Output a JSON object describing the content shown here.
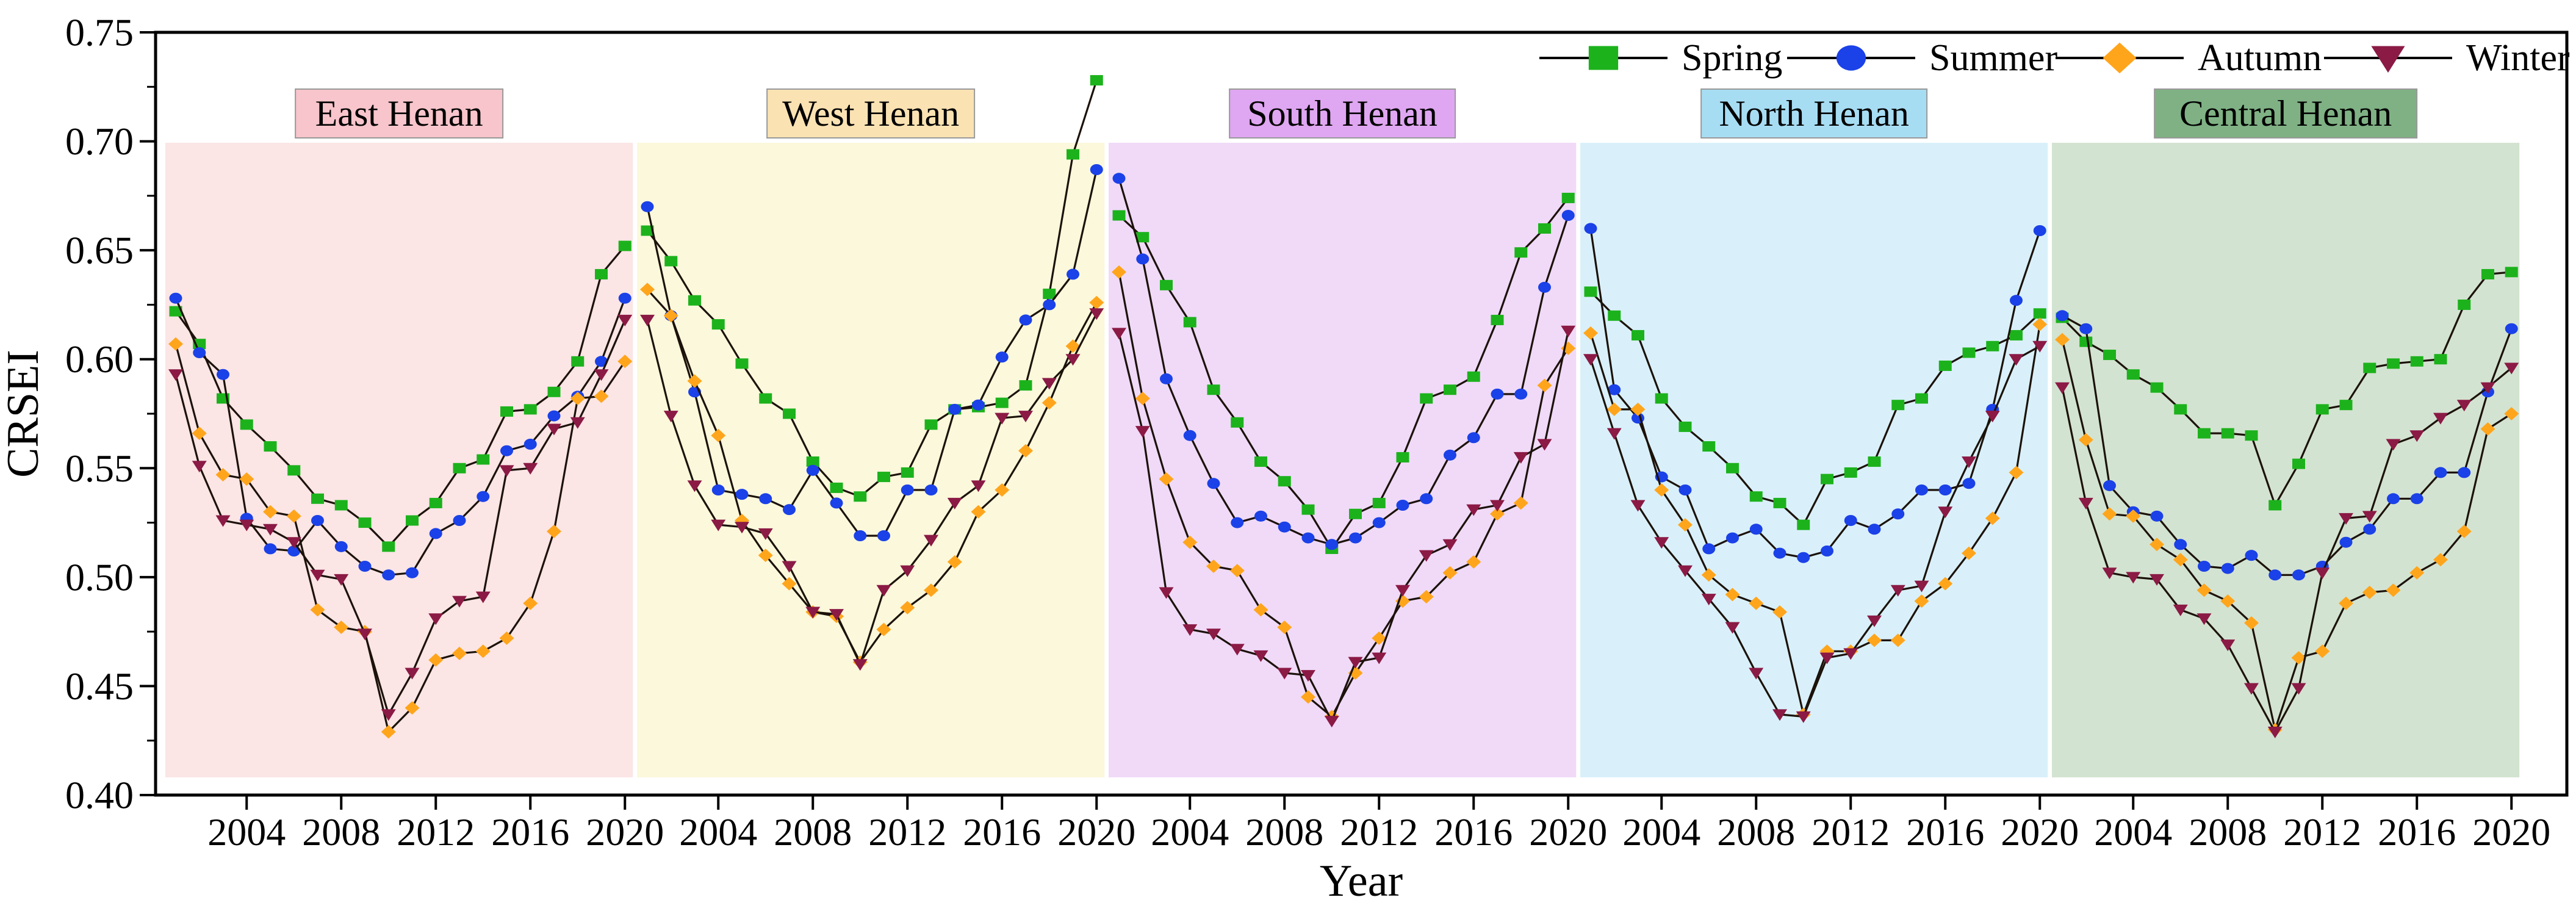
{
  "chart_data": {
    "type": "line",
    "title": "",
    "ylabel": "CRSEI",
    "xlabel": "Year",
    "ylim": [
      0.4,
      0.75
    ],
    "yticks": [
      0.4,
      0.45,
      0.5,
      0.55,
      0.6,
      0.65,
      0.7,
      0.75
    ],
    "ytick_labels": [
      "0.40",
      "0.45",
      "0.50",
      "0.55",
      "0.60",
      "0.65",
      "0.70",
      "0.75"
    ],
    "xticks": [
      2004,
      2008,
      2012,
      2016,
      2020
    ],
    "years": [
      2001,
      2002,
      2003,
      2004,
      2005,
      2006,
      2007,
      2008,
      2009,
      2010,
      2011,
      2012,
      2013,
      2014,
      2015,
      2016,
      2017,
      2018,
      2019,
      2020
    ],
    "grid": "off",
    "legend_position": "top-right",
    "legend": [
      {
        "label": "Spring",
        "marker": "square",
        "color": "#1CB21C"
      },
      {
        "label": "Summer",
        "marker": "circle",
        "color": "#1B41E8"
      },
      {
        "label": "Autumn",
        "marker": "diamond",
        "color": "#FFA51C"
      },
      {
        "label": "Winter",
        "marker": "triangle-down",
        "color": "#8B1A45"
      }
    ],
    "line_color": "#1C120A",
    "panels": [
      {
        "label": "East Henan",
        "panel_bg": "#FBE5E5",
        "label_bg": "#F7C5CB",
        "series": {
          "Spring": [
            0.622,
            0.607,
            0.582,
            0.57,
            0.56,
            0.549,
            0.536,
            0.533,
            0.525,
            0.514,
            0.526,
            0.534,
            0.55,
            0.554,
            0.576,
            0.577,
            0.585,
            0.599,
            0.639,
            0.652
          ],
          "Summer": [
            0.628,
            0.603,
            0.593,
            0.527,
            0.513,
            0.512,
            0.526,
            0.514,
            0.505,
            0.501,
            0.502,
            0.52,
            0.526,
            0.537,
            0.558,
            0.561,
            0.574,
            0.583,
            0.599,
            0.628
          ],
          "Autumn": [
            0.607,
            0.566,
            0.547,
            0.545,
            0.53,
            0.528,
            0.485,
            0.477,
            0.475,
            0.429,
            0.44,
            0.462,
            0.465,
            0.466,
            0.472,
            0.488,
            0.521,
            0.582,
            0.583,
            0.599
          ],
          "Winter": [
            0.593,
            0.551,
            0.526,
            0.524,
            0.522,
            0.516,
            0.501,
            0.499,
            0.474,
            0.437,
            0.456,
            0.481,
            0.489,
            0.491,
            0.549,
            0.55,
            0.568,
            0.571,
            0.593,
            0.618
          ]
        }
      },
      {
        "label": "West Henan",
        "panel_bg": "#FBF8DB",
        "label_bg": "#FAE2B3",
        "series": {
          "Spring": [
            0.659,
            0.645,
            0.627,
            0.616,
            0.598,
            0.582,
            0.575,
            0.553,
            0.541,
            0.537,
            0.546,
            0.548,
            0.57,
            0.577,
            0.578,
            0.58,
            0.588,
            0.63,
            0.694,
            0.728
          ],
          "Summer": [
            0.67,
            0.62,
            0.585,
            0.54,
            0.538,
            0.536,
            0.531,
            0.549,
            0.534,
            0.519,
            0.519,
            0.54,
            0.54,
            0.577,
            0.579,
            0.601,
            0.618,
            0.625,
            0.639,
            0.687
          ],
          "Autumn": [
            0.632,
            0.62,
            0.59,
            0.565,
            0.526,
            0.51,
            0.497,
            0.484,
            0.482,
            0.461,
            0.476,
            0.486,
            0.494,
            0.507,
            0.53,
            0.54,
            0.558,
            0.58,
            0.606,
            0.626
          ],
          "Winter": [
            0.618,
            0.574,
            0.542,
            0.524,
            0.523,
            0.52,
            0.505,
            0.484,
            0.483,
            0.46,
            0.494,
            0.503,
            0.517,
            0.534,
            0.542,
            0.573,
            0.574,
            0.589,
            0.6,
            0.621
          ]
        }
      },
      {
        "label": "South Henan",
        "panel_bg": "#F0DAF8",
        "label_bg": "#DFA6F1",
        "series": {
          "Spring": [
            0.666,
            0.656,
            0.634,
            0.617,
            0.586,
            0.571,
            0.553,
            0.544,
            0.531,
            0.513,
            0.529,
            0.534,
            0.555,
            0.582,
            0.586,
            0.592,
            0.618,
            0.649,
            0.66,
            0.674
          ],
          "Summer": [
            0.683,
            0.646,
            0.591,
            0.565,
            0.543,
            0.525,
            0.528,
            0.523,
            0.518,
            0.515,
            0.518,
            0.525,
            0.533,
            0.536,
            0.556,
            0.564,
            0.584,
            0.584,
            0.633,
            0.666
          ],
          "Autumn": [
            0.64,
            0.582,
            0.545,
            0.516,
            0.505,
            0.503,
            0.485,
            0.477,
            0.445,
            0.436,
            0.456,
            0.472,
            0.489,
            0.491,
            0.502,
            0.507,
            0.529,
            0.534,
            0.588,
            0.605
          ],
          "Winter": [
            0.612,
            0.567,
            0.493,
            0.476,
            0.474,
            0.467,
            0.464,
            0.456,
            0.455,
            0.434,
            0.461,
            0.463,
            0.494,
            0.51,
            0.515,
            0.531,
            0.533,
            0.555,
            0.561,
            0.613
          ]
        }
      },
      {
        "label": "North Henan",
        "panel_bg": "#D9F0FA",
        "label_bg": "#A7DDF3",
        "series": {
          "Spring": [
            0.631,
            0.62,
            0.611,
            0.582,
            0.569,
            0.56,
            0.55,
            0.537,
            0.534,
            0.524,
            0.545,
            0.548,
            0.553,
            0.579,
            0.582,
            0.597,
            0.603,
            0.606,
            0.611,
            0.621
          ],
          "Summer": [
            0.66,
            0.586,
            0.573,
            0.546,
            0.54,
            0.513,
            0.518,
            0.522,
            0.511,
            0.509,
            0.512,
            0.526,
            0.522,
            0.529,
            0.54,
            0.54,
            0.543,
            0.577,
            0.627,
            0.659
          ],
          "Autumn": [
            0.612,
            0.577,
            0.577,
            0.54,
            0.524,
            0.501,
            0.492,
            0.488,
            0.484,
            0.437,
            0.466,
            0.466,
            0.471,
            0.471,
            0.489,
            0.497,
            0.511,
            0.527,
            0.548,
            0.616
          ],
          "Winter": [
            0.6,
            0.566,
            0.533,
            0.516,
            0.503,
            0.49,
            0.477,
            0.456,
            0.437,
            0.436,
            0.463,
            0.465,
            0.48,
            0.494,
            0.496,
            0.53,
            0.553,
            0.574,
            0.6,
            0.606
          ]
        }
      },
      {
        "label": "Central Henan",
        "panel_bg": "#D3E3D1",
        "label_bg": "#7FB184",
        "series": {
          "Spring": [
            0.619,
            0.608,
            0.602,
            0.593,
            0.587,
            0.577,
            0.566,
            0.566,
            0.565,
            0.533,
            0.552,
            0.577,
            0.579,
            0.596,
            0.598,
            0.599,
            0.6,
            0.625,
            0.639,
            0.64
          ],
          "Summer": [
            0.62,
            0.614,
            0.542,
            0.53,
            0.528,
            0.515,
            0.505,
            0.504,
            0.51,
            0.501,
            0.501,
            0.505,
            0.516,
            0.522,
            0.536,
            0.536,
            0.548,
            0.548,
            0.585,
            0.614
          ],
          "Autumn": [
            0.609,
            0.563,
            0.529,
            0.528,
            0.515,
            0.508,
            0.494,
            0.489,
            0.479,
            0.43,
            0.463,
            0.466,
            0.488,
            0.493,
            0.494,
            0.502,
            0.508,
            0.521,
            0.568,
            0.575
          ],
          "Winter": [
            0.587,
            0.534,
            0.502,
            0.5,
            0.499,
            0.485,
            0.481,
            0.469,
            0.449,
            0.429,
            0.449,
            0.502,
            0.527,
            0.528,
            0.561,
            0.565,
            0.573,
            0.579,
            0.587,
            0.596
          ]
        }
      }
    ]
  }
}
